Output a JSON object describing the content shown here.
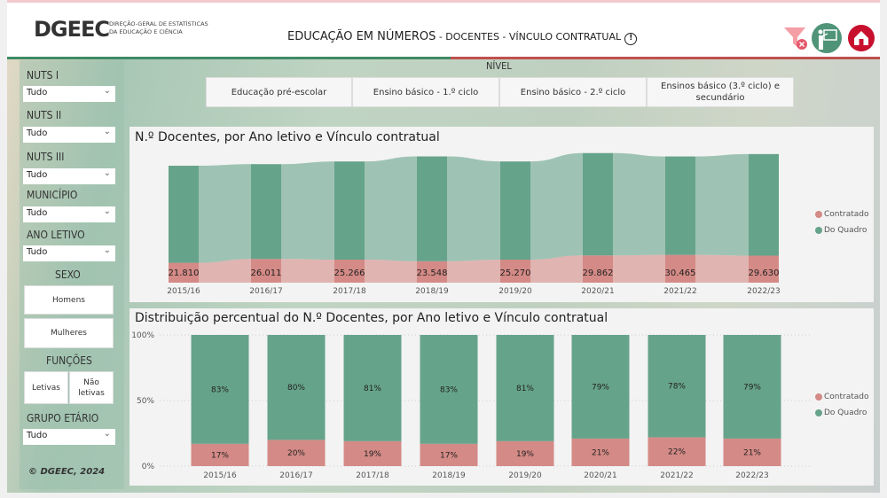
{
  "header": {
    "logo_text": "DGEEC",
    "org_line1": "DIREÇÃO-GERAL DE ESTATÍSTICAS",
    "org_line2": "DA EDUCAÇÃO E CIÊNCIA",
    "title_main": "EDUCAÇÃO EM NÚMEROS",
    "title_sub": " - DOCENTES - VÍNCULO CONTRATUAL",
    "info_icon": "info-icon",
    "icons": [
      "clear-filter-icon",
      "teacher-icon",
      "home-icon"
    ]
  },
  "colors": {
    "contratado": "#d48a86",
    "do_quadro": "#66a38b",
    "accent_red": "#c8102e"
  },
  "sidebar": {
    "filters": [
      {
        "label": "NUTS I",
        "value": "Tudo"
      },
      {
        "label": "NUTS II",
        "value": "Tudo"
      },
      {
        "label": "NUTS III",
        "value": "Tudo"
      },
      {
        "label": "MUNICÍPIO",
        "value": "Tudo"
      },
      {
        "label": "ANO LETIVO",
        "value": "Tudo"
      }
    ],
    "sexo_label": "SEXO",
    "sexo": [
      "Homens",
      "Mulheres"
    ],
    "funcoes_label": "FUNÇÕES",
    "funcoes": [
      "Letivas",
      "Não letivas"
    ],
    "grupo_label": "GRUPO ETÁRIO",
    "grupo_value": "Tudo",
    "copyright": "© DGEEC, 2024"
  },
  "nivel": {
    "label": "NÍVEL",
    "options": [
      "Educação pré-escolar",
      "Ensino básico - 1.º ciclo",
      "Ensino básico - 2.º ciclo",
      "Ensinos básico (3.º ciclo) e secundário"
    ]
  },
  "chart_data": [
    {
      "type": "bar",
      "subtype": "ribbon-stacked",
      "title": "N.º Docentes, por Ano letivo e Vínculo contratual",
      "categories": [
        "2015/16",
        "2016/17",
        "2017/18",
        "2018/19",
        "2019/20",
        "2020/21",
        "2021/22",
        "2022/23"
      ],
      "series": [
        {
          "name": "Contratado",
          "values": [
            21810,
            26011,
            25266,
            23548,
            25270,
            29862,
            30465,
            29630
          ]
        },
        {
          "name": "Do Quadro",
          "values": [
            106484,
            104044,
            107713,
            114970,
            107730,
            112338,
            108012,
            111465
          ],
          "estimated": true
        }
      ],
      "ylim": [
        0,
        140000
      ],
      "legend": "right"
    },
    {
      "type": "bar",
      "subtype": "100%-stacked",
      "title": "Distribuição percentual do N.º Docentes, por Ano letivo e Vínculo contratual",
      "categories": [
        "2015/16",
        "2016/17",
        "2017/18",
        "2018/19",
        "2019/20",
        "2020/21",
        "2021/22",
        "2022/23"
      ],
      "series": [
        {
          "name": "Contratado",
          "values": [
            17,
            20,
            19,
            17,
            19,
            21,
            22,
            21
          ]
        },
        {
          "name": "Do Quadro",
          "values": [
            83,
            80,
            81,
            83,
            81,
            79,
            78,
            79
          ]
        }
      ],
      "yticks": [
        "0%",
        "50%",
        "100%"
      ],
      "ylim": [
        0,
        100
      ],
      "legend": "right"
    }
  ]
}
